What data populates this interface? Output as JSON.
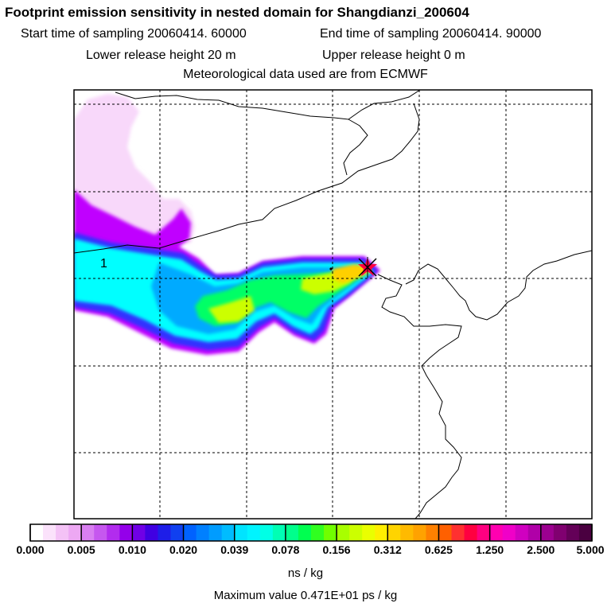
{
  "header": {
    "title": "Footprint emission sensitivity in nested domain for Shangdianzi_200604",
    "start_label": "Start time of sampling 20060414. 60000",
    "end_label": "End time of sampling 20060414. 90000",
    "lower_label": "Lower release height   20 m",
    "upper_label": "Upper release height    0 m",
    "met_label": "Meteorological data used are from ECMWF"
  },
  "map": {
    "marker_label": "1",
    "receptor_symbol": "star",
    "plume_colors": [
      "#ff66ff",
      "#c000ff",
      "#3030ff",
      "#00aaff",
      "#00ffff",
      "#00ff66",
      "#ccff00",
      "#ffd000"
    ]
  },
  "colorbar": {
    "tick_labels": [
      "0.000",
      "0.005",
      "0.010",
      "0.020",
      "0.039",
      "0.078",
      "0.156",
      "0.312",
      "0.625",
      "1.250",
      "2.500",
      "5.000"
    ],
    "colors": [
      "#ffffff",
      "#fbe2fb",
      "#f4c2f6",
      "#eda8f3",
      "#d97ff1",
      "#c657ef",
      "#b22cee",
      "#9400ea",
      "#7000e6",
      "#4000e2",
      "#1e1ee8",
      "#1040f0",
      "#0062ff",
      "#0080ff",
      "#009cff",
      "#00bcff",
      "#00e4ff",
      "#00f4ff",
      "#00ffe6",
      "#00ffb4",
      "#00ff8c",
      "#00ff50",
      "#30ff20",
      "#70ff00",
      "#a8ff00",
      "#ccff00",
      "#eaff00",
      "#ffef00",
      "#ffd400",
      "#ffba00",
      "#ffa200",
      "#ff8000",
      "#ff6000",
      "#ff3030",
      "#ff0040",
      "#ff0080",
      "#ff00b0",
      "#f000c8",
      "#d000c0",
      "#b000a8",
      "#9c0090",
      "#800070",
      "#640058",
      "#4a0040"
    ],
    "unit_label": "ns / kg"
  },
  "footer": {
    "max_label": "Maximum value  0.471E+01 ps / kg"
  }
}
